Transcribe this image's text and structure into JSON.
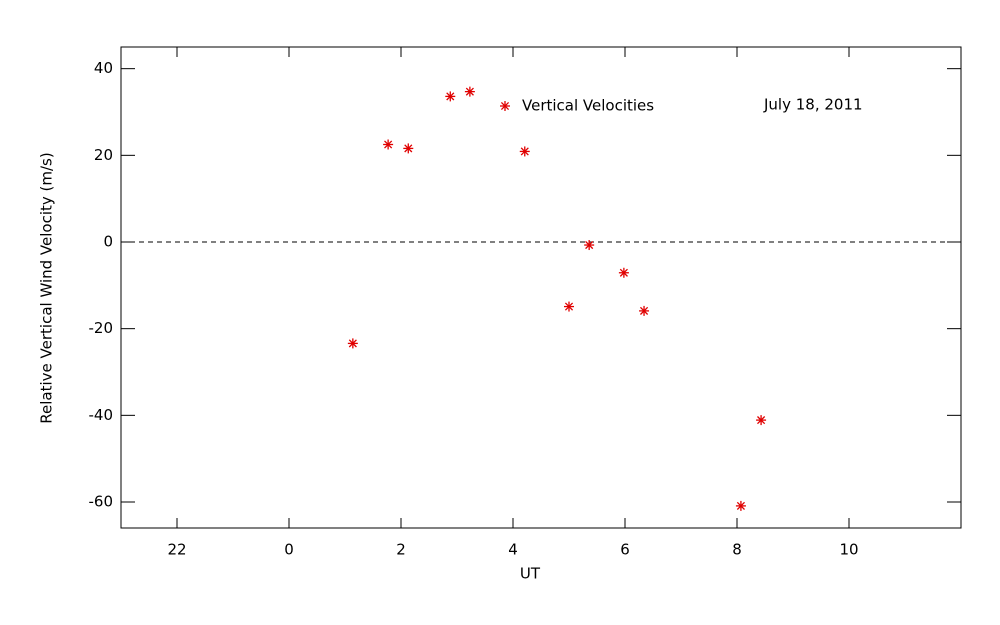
{
  "chart_data": {
    "type": "scatter",
    "x_label": "UT",
    "y_label": "Relative Vertical Wind Velocity (m/s)",
    "annotation": "July 18, 2011",
    "xlim": [
      -3,
      12
    ],
    "ylim": [
      -66,
      45
    ],
    "xticks": [
      {
        "value": -2,
        "label": "22"
      },
      0,
      2,
      4,
      6,
      8,
      10
    ],
    "yticks": [
      -60,
      -40,
      -20,
      0,
      20,
      40
    ],
    "reference_line": 0,
    "grid": false,
    "legend": "top",
    "series": [
      {
        "name": "Vertical Velocities",
        "color": "#e00000",
        "x": [
          1.14,
          1.77,
          2.13,
          2.88,
          3.23,
          4.21,
          5.0,
          5.36,
          5.98,
          6.34,
          8.07,
          8.43
        ],
        "values": [
          -23.4,
          22.5,
          21.6,
          33.6,
          34.7,
          20.9,
          -14.9,
          -0.7,
          -7.1,
          -15.9,
          -60.9,
          -41.1
        ]
      }
    ]
  }
}
